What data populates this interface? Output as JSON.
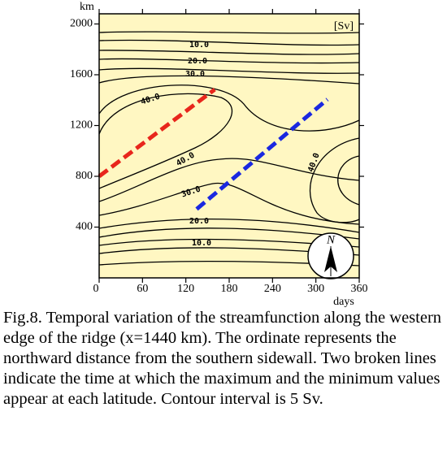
{
  "chart_data": {
    "type": "contour",
    "x_label": "days",
    "y_label": "km",
    "unit_label": "[Sv]",
    "xlim": [
      0,
      360
    ],
    "xticks": [
      0,
      60,
      120,
      180,
      240,
      300,
      360
    ],
    "ylim": [
      0,
      2080
    ],
    "yticks": [
      400,
      800,
      1200,
      1600,
      2000
    ],
    "background": "#fff7c2",
    "contour_levels": [
      5,
      10,
      15,
      20,
      25,
      30,
      35,
      40,
      45
    ],
    "contour_labels": [
      {
        "value": 10,
        "label": "10.0"
      },
      {
        "value": 20,
        "label": "20.0"
      },
      {
        "value": 30,
        "label": "30.0"
      },
      {
        "value": 40,
        "label": "40.0"
      }
    ],
    "series": [
      {
        "color": "#e8261c",
        "x": [
          0,
          160
        ],
        "y": [
          800,
          1484
        ]
      },
      {
        "color": "#1a28e0",
        "x": [
          135,
          316
        ],
        "y": [
          542,
          1406
        ]
      }
    ],
    "caption": "Fig.8. Temporal variation of the streamfunction along the western edge of the ridge (x=1440 km). The ordinate represents the northward distance from the southern sidewall. Two broken lines indicate the time at which the maximum and the minimum values appear at each latitude. Contour interval is 5 Sv."
  }
}
